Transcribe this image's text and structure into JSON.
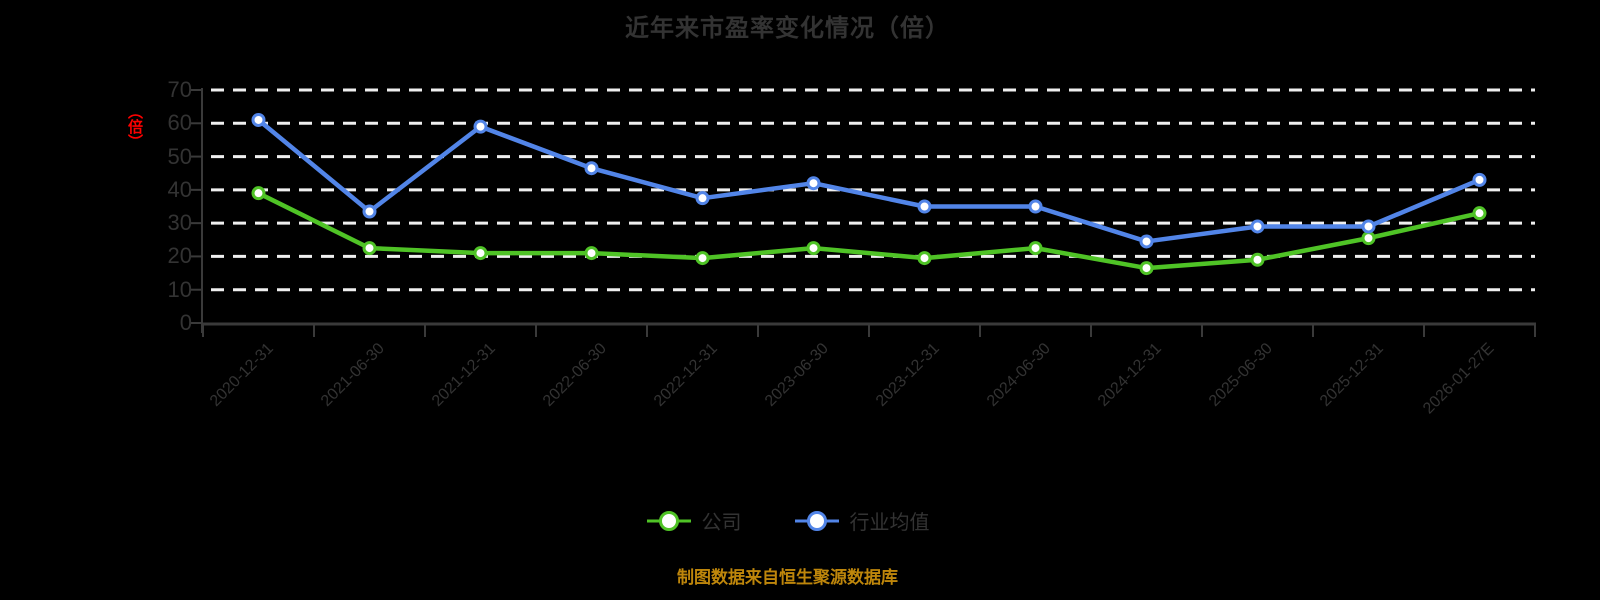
{
  "title": "近年来市盈率变化情况（倍）",
  "y_axis_unit_label": "（倍）",
  "footer_note": "制图数据来自恒生聚源数据库",
  "colors": {
    "company": "#4FC326",
    "industry": "#5285E8",
    "grid": "#EFEFEF",
    "axis": "#3A3A3A",
    "text": "#333333",
    "unit_label": "#FE0000",
    "footer": "#BE860B",
    "background": "#000000",
    "marker_fill": "#FFFFFF"
  },
  "chart_data": {
    "type": "line",
    "title": "近年来市盈率变化情况（倍）",
    "categories": [
      "2020-12-31",
      "2021-06-30",
      "2021-12-31",
      "2022-06-30",
      "2022-12-31",
      "2023-06-30",
      "2023-12-31",
      "2024-06-30",
      "2024-12-31",
      "2025-06-30",
      "2025-12-31",
      "2026-01-27E"
    ],
    "series": [
      {
        "key": "company",
        "name": "公司",
        "values": [
          39,
          22.5,
          21,
          21,
          19.5,
          22.5,
          19.5,
          22.5,
          16.5,
          19,
          25.5,
          33
        ]
      },
      {
        "key": "industry",
        "name": "行业均值",
        "values": [
          61,
          33.5,
          59,
          46.5,
          37.5,
          42,
          35,
          35,
          24.5,
          29,
          29,
          43
        ]
      }
    ],
    "ylim": [
      0,
      70
    ],
    "y_ticks": [
      0,
      10,
      20,
      30,
      40,
      50,
      60,
      70
    ],
    "grid": "horizontal-dashed-white",
    "marker": "circle-white-fill-colored-ring",
    "legend_position": "bottom-center",
    "x_label_rotation_deg": -45
  }
}
